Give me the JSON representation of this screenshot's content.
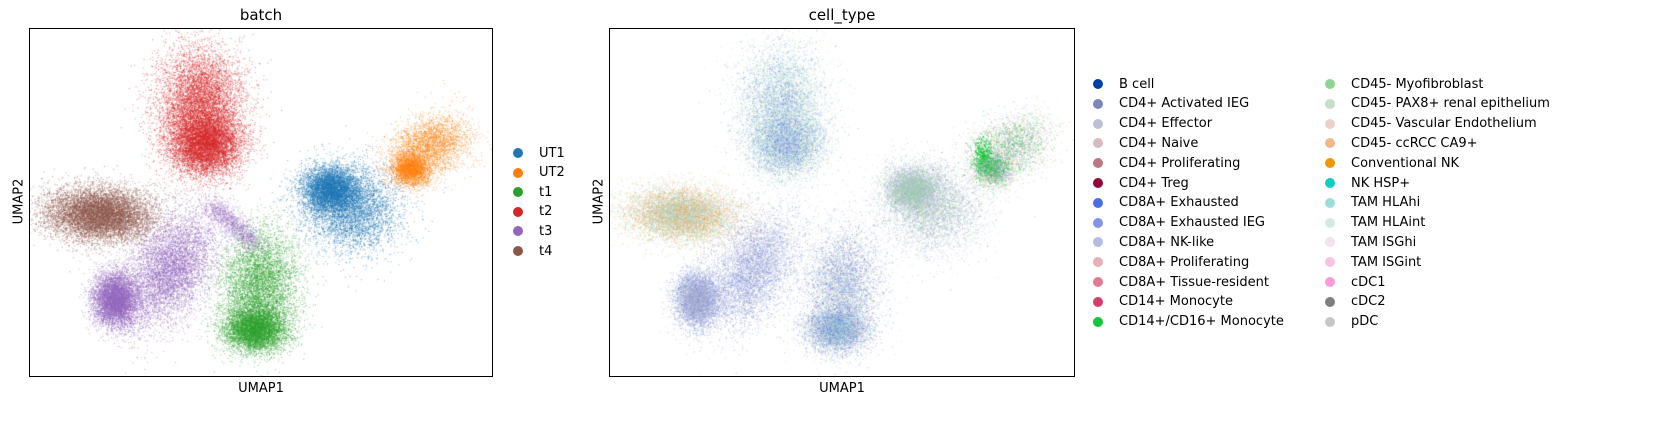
{
  "chart_data": [
    {
      "type": "scatter",
      "title": "batch",
      "xlabel": "UMAP1",
      "ylabel": "UMAP2",
      "xticks": false,
      "yticks": false,
      "legend_placement": "right",
      "categories": [
        "UT1",
        "UT2",
        "t1",
        "t2",
        "t3",
        "t4"
      ],
      "colors": [
        "#1f77b4",
        "#ff7f0e",
        "#2ca02c",
        "#d62728",
        "#9467bd",
        "#8c564b"
      ],
      "clusters": [
        {
          "category": "UT1",
          "approx_umap_center": [
            0.7,
            0.57
          ],
          "relative_size": 0.16
        },
        {
          "category": "UT2",
          "approx_umap_center": [
            0.88,
            0.67
          ],
          "relative_size": 0.09
        },
        {
          "category": "t1",
          "approx_umap_center": [
            0.53,
            0.23
          ],
          "relative_size": 0.18
        },
        {
          "category": "t2",
          "approx_umap_center": [
            0.34,
            0.78
          ],
          "relative_size": 0.22
        },
        {
          "category": "t3",
          "approx_umap_center": [
            0.25,
            0.3
          ],
          "relative_size": 0.2
        },
        {
          "category": "t4",
          "approx_umap_center": [
            0.13,
            0.48
          ],
          "relative_size": 0.15
        }
      ]
    },
    {
      "type": "scatter",
      "title": "cell_type",
      "xlabel": "UMAP1",
      "ylabel": "UMAP2",
      "xticks": false,
      "yticks": false,
      "legend_placement": "right",
      "categories": [
        "B cell",
        "CD4+ Activated IEG",
        "CD4+ Effector",
        "CD4+ Naive",
        "CD4+ Proliferating",
        "CD4+ Treg",
        "CD8A+ Exhausted",
        "CD8A+ Exhausted IEG",
        "CD8A+ NK-like",
        "CD8A+ Proliferating",
        "CD8A+ Tissue-resident",
        "CD14+ Monocyte",
        "CD14+/CD16+ Monocyte",
        "CD45- Myofibroblast",
        "CD45- PAX8+ renal epithelium",
        "CD45- Vascular Endothelium",
        "CD45- ccRCC CA9+",
        "Conventional NK",
        "NK HSP+",
        "TAM HLAhi",
        "TAM HLAint",
        "TAM ISGhi",
        "TAM ISGint",
        "cDC1",
        "cDC2",
        "pDC"
      ],
      "colors": [
        "#023fa5",
        "#7d87b9",
        "#bec1d4",
        "#d6bcc0",
        "#bb7784",
        "#8e063b",
        "#4a6fe3",
        "#8595e1",
        "#b5bbe3",
        "#e6afb9",
        "#e07b91",
        "#d33f6a",
        "#11c638",
        "#8dd593",
        "#c6dec7",
        "#ead3c6",
        "#f0b98d",
        "#ef9708",
        "#0fcfc0",
        "#9cded6",
        "#d5eae7",
        "#f3e1eb",
        "#f6c4e1",
        "#f79cd4",
        "#7f7f7f",
        "#c7c7c7"
      ]
    }
  ]
}
